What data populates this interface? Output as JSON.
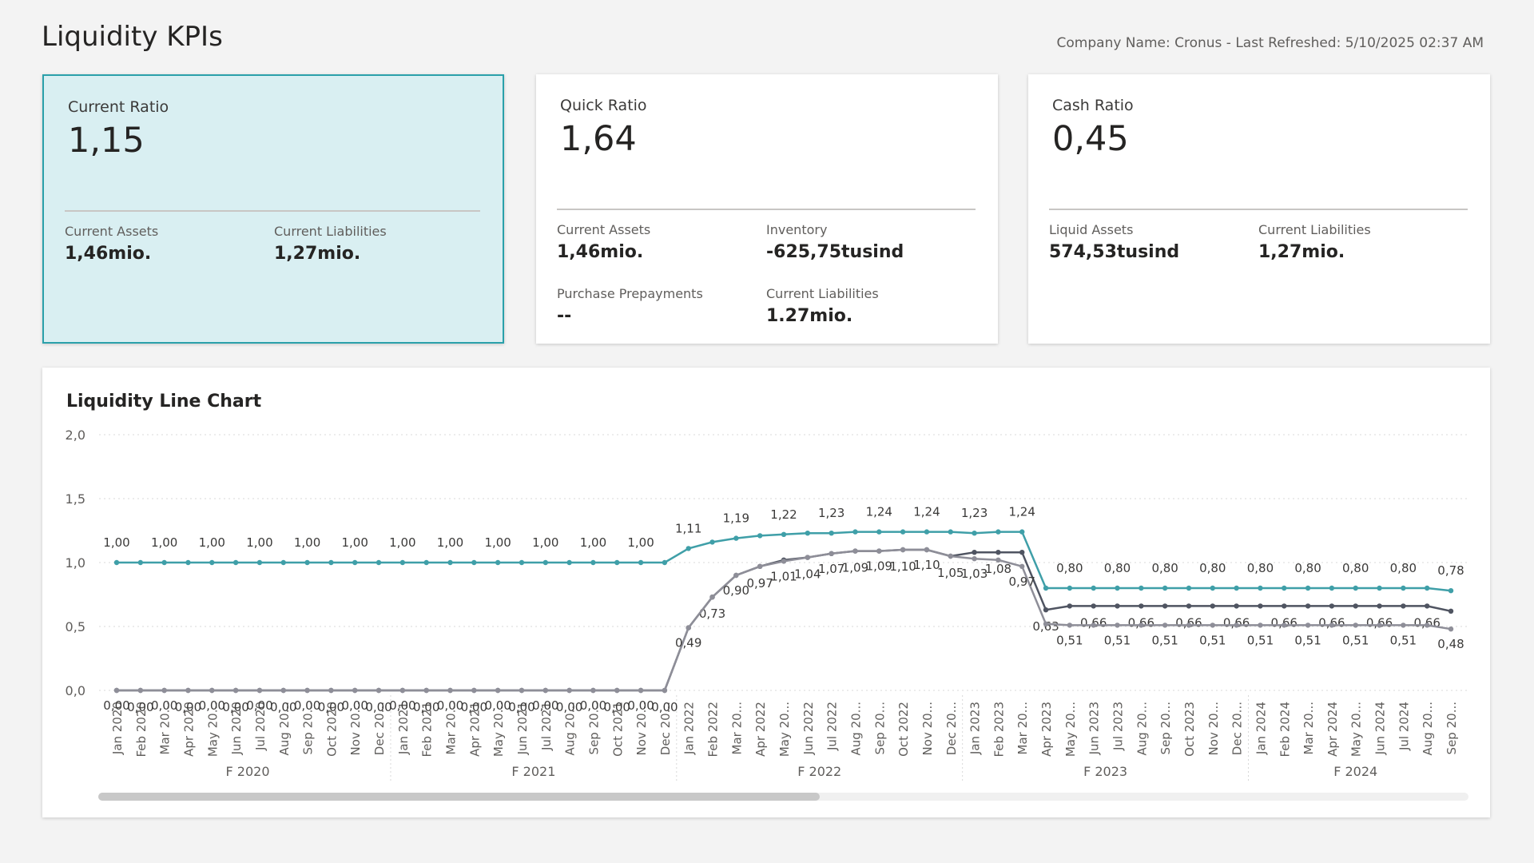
{
  "header": {
    "title": "Liquidity KPIs",
    "refresh": "Company Name: Cronus - Last Refreshed: 5/10/2025 02:37 AM"
  },
  "cards": [
    {
      "title": "Current Ratio",
      "value": "1,15",
      "metrics": [
        {
          "label": "Current Assets",
          "value": "1,46mio."
        },
        {
          "label": "Current Liabilities",
          "value": "1,27mio."
        }
      ]
    },
    {
      "title": "Quick Ratio",
      "value": "1,64",
      "metrics": [
        {
          "label": "Current Assets",
          "value": "1,46mio."
        },
        {
          "label": "Inventory",
          "value": "-625,75tusind"
        },
        {
          "label": "Purchase Prepayments",
          "value": "--"
        },
        {
          "label": "Current Liabilities",
          "value": "1.27mio."
        }
      ]
    },
    {
      "title": "Cash Ratio",
      "value": "0,45",
      "metrics": [
        {
          "label": "Liquid Assets",
          "value": "574,53tusind"
        },
        {
          "label": "Current Liabilities",
          "value": "1,27mio."
        }
      ]
    }
  ],
  "chart_data": {
    "type": "line",
    "title": "Liquidity Line Chart",
    "categories": [
      "Jan 2020",
      "Feb 2020",
      "Mar 20...",
      "Apr 2020",
      "May 20...",
      "Jun 2020",
      "Jul 2020",
      "Aug 20...",
      "Sep 20...",
      "Oct 2020",
      "Nov 20...",
      "Dec 20...",
      "Jan 2021",
      "Feb 2021",
      "Mar 20...",
      "Apr 2021",
      "May 20...",
      "Jun 2021",
      "Jul 2021",
      "Aug 20...",
      "Sep 20...",
      "Oct 2021",
      "Nov 20...",
      "Dec 20...",
      "Jan 2022",
      "Feb 2022",
      "Mar 20...",
      "Apr 2022",
      "May 20...",
      "Jun 2022",
      "Jul 2022",
      "Aug 20...",
      "Sep 20...",
      "Oct 2022",
      "Nov 20...",
      "Dec 20...",
      "Jan 2023",
      "Feb 2023",
      "Mar 20...",
      "Apr 2023",
      "May 20...",
      "Jun 2023",
      "Jul 2023",
      "Aug 20...",
      "Sep 20...",
      "Oct 2023",
      "Nov 20...",
      "Dec 20...",
      "Jan 2024",
      "Feb 2024",
      "Mar 20...",
      "Apr 2024",
      "May 20...",
      "Jun 2024",
      "Jul 2024",
      "Aug 20...",
      "Sep 20..."
    ],
    "x_groups": [
      "F 2020",
      "F 2021",
      "F 2022",
      "F 2023",
      "F 2024"
    ],
    "ylim": [
      0,
      2
    ],
    "yticks": [
      {
        "value": 0,
        "label": "0,0"
      },
      {
        "value": 0.5,
        "label": "0,5"
      },
      {
        "value": 1,
        "label": "1,0"
      },
      {
        "value": 1.5,
        "label": "1,5"
      },
      {
        "value": 2,
        "label": "2,0"
      }
    ],
    "grid": true,
    "series": [
      {
        "color": "#3f9fa8",
        "values": [
          1,
          1,
          1,
          1,
          1,
          1,
          1,
          1,
          1,
          1,
          1,
          1,
          1,
          1,
          1,
          1,
          1,
          1,
          1,
          1,
          1,
          1,
          1,
          1,
          1.11,
          1.16,
          1.19,
          1.21,
          1.22,
          1.23,
          1.23,
          1.24,
          1.24,
          1.24,
          1.24,
          1.24,
          1.23,
          1.24,
          1.24,
          0.8,
          0.8,
          0.8,
          0.8,
          0.8,
          0.8,
          0.8,
          0.8,
          0.8,
          0.8,
          0.8,
          0.8,
          0.8,
          0.8,
          0.8,
          0.8,
          0.8,
          0.78
        ],
        "value_labels": [
          "1,00",
          null,
          "1,00",
          null,
          "1,00",
          null,
          "1,00",
          null,
          "1,00",
          null,
          "1,00",
          null,
          "1,00",
          null,
          "1,00",
          null,
          "1,00",
          null,
          "1,00",
          null,
          "1,00",
          null,
          "1,00",
          null,
          "1,11",
          null,
          "1,19",
          null,
          "1,22",
          null,
          "1,23",
          null,
          "1,24",
          null,
          "1,24",
          null,
          "1,23",
          null,
          "1,24",
          null,
          "0,80",
          null,
          "0,80",
          null,
          "0,80",
          null,
          "0,80",
          null,
          "0,80",
          null,
          "0,80",
          null,
          "0,80",
          null,
          "0,80",
          null,
          "0,78"
        ]
      },
      {
        "color": "#4f5461",
        "values": [
          0,
          0,
          0,
          0,
          0,
          0,
          0,
          0,
          0,
          0,
          0,
          0,
          0,
          0,
          0,
          0,
          0,
          0,
          0,
          0,
          0,
          0,
          0,
          0,
          0.49,
          0.73,
          0.9,
          0.97,
          1.02,
          1.04,
          1.07,
          1.09,
          1.09,
          1.1,
          1.1,
          1.05,
          1.08,
          1.08,
          1.08,
          0.63,
          0.66,
          0.66,
          0.66,
          0.66,
          0.66,
          0.66,
          0.66,
          0.66,
          0.66,
          0.66,
          0.66,
          0.66,
          0.66,
          0.66,
          0.66,
          0.66,
          0.62
        ],
        "value_labels": [
          null,
          "0,00",
          null,
          "0,00",
          null,
          "0,00",
          null,
          "0,00",
          null,
          "0,00",
          null,
          "0,00",
          null,
          "0,00",
          null,
          "0,00",
          null,
          "0,00",
          null,
          "0,00",
          null,
          "0,00",
          null,
          "0,00",
          null,
          "0,73",
          null,
          "0,97",
          null,
          "1,04",
          null,
          "1,09",
          null,
          "1,10",
          null,
          "1,05",
          null,
          "1,08",
          null,
          "0,63",
          null,
          "0,66",
          null,
          "0,66",
          null,
          "0,66",
          null,
          "0,66",
          null,
          "0,66",
          null,
          "0,66",
          null,
          "0,66",
          null,
          "0,66",
          null
        ]
      },
      {
        "color": "#8e8e98",
        "values": [
          0,
          0,
          0,
          0,
          0,
          0,
          0,
          0,
          0,
          0,
          0,
          0,
          0,
          0,
          0,
          0,
          0,
          0,
          0,
          0,
          0,
          0,
          0,
          0,
          0.49,
          0.73,
          0.9,
          0.97,
          1.01,
          1.04,
          1.07,
          1.09,
          1.09,
          1.1,
          1.1,
          1.05,
          1.03,
          1.02,
          0.97,
          0.52,
          0.51,
          0.51,
          0.51,
          0.51,
          0.51,
          0.51,
          0.51,
          0.51,
          0.51,
          0.51,
          0.51,
          0.51,
          0.51,
          0.51,
          0.51,
          0.51,
          0.48
        ],
        "value_labels": [
          "0,00",
          null,
          "0,00",
          null,
          "0,00",
          null,
          "0,00",
          null,
          "0,00",
          null,
          "0,00",
          null,
          "0,00",
          null,
          "0,00",
          null,
          "0,00",
          null,
          "0,00",
          null,
          "0,00",
          null,
          "0,00",
          null,
          "0,49",
          null,
          "0,90",
          null,
          "1,01",
          null,
          "1,07",
          null,
          "1,09",
          null,
          "1,10",
          null,
          "1,03",
          null,
          "0,97",
          null,
          "0,51",
          null,
          "0,51",
          null,
          "0,51",
          null,
          "0,51",
          null,
          "0,51",
          null,
          "0,51",
          null,
          "0,51",
          null,
          "0,51",
          null,
          "0,48"
        ]
      }
    ]
  }
}
